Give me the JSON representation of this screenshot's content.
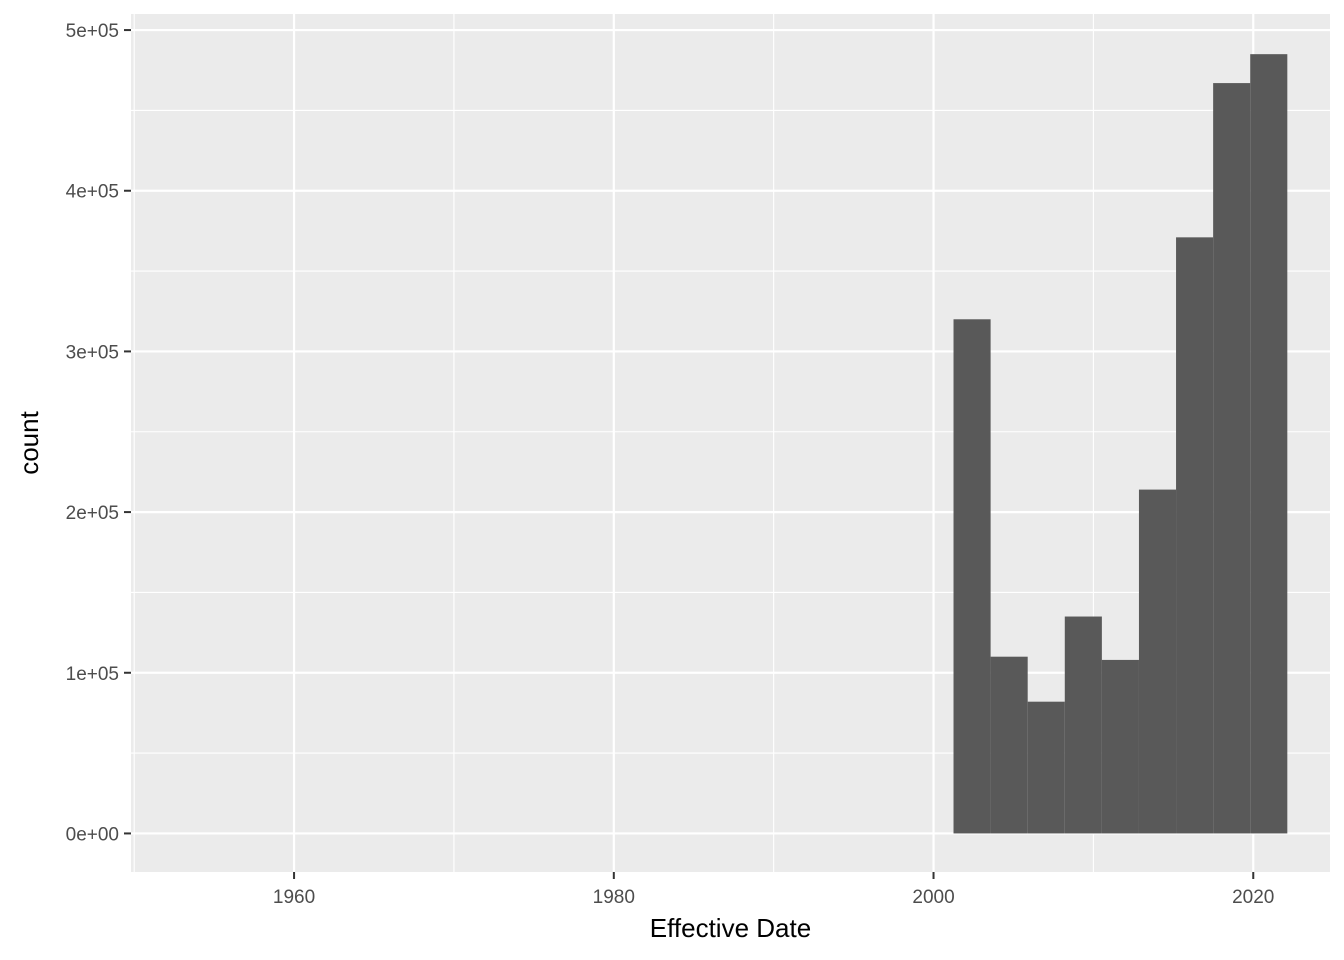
{
  "chart_data": {
    "type": "bar",
    "xlabel": "Effective Date",
    "ylabel": "count",
    "xlim": [
      1949.8,
      2024.8
    ],
    "ylim": [
      -24000,
      510000
    ],
    "x_ticks": [
      1960,
      1980,
      2000,
      2020
    ],
    "x_tick_labels": [
      "1960",
      "1980",
      "2000",
      "2020"
    ],
    "y_ticks": [
      0,
      100000,
      200000,
      300000,
      400000,
      500000
    ],
    "y_tick_labels": [
      "0e+00",
      "1e+05",
      "2e+05",
      "3e+05",
      "4e+05",
      "5e+05"
    ],
    "bin_width": 2.32,
    "bins": [
      {
        "start": 2001.25,
        "end": 2003.57,
        "count": 320000
      },
      {
        "start": 2003.57,
        "end": 2005.89,
        "count": 110000
      },
      {
        "start": 2005.89,
        "end": 2008.21,
        "count": 82000
      },
      {
        "start": 2008.21,
        "end": 2010.53,
        "count": 135000
      },
      {
        "start": 2010.53,
        "end": 2012.85,
        "count": 108000
      },
      {
        "start": 2012.85,
        "end": 2015.17,
        "count": 214000
      },
      {
        "start": 2015.17,
        "end": 2017.49,
        "count": 371000
      },
      {
        "start": 2017.49,
        "end": 2019.81,
        "count": 467000
      },
      {
        "start": 2019.81,
        "end": 2022.13,
        "count": 485000
      }
    ],
    "colors": {
      "panel_background": "#ebebeb",
      "grid": "#ffffff",
      "bar_fill": "#595959",
      "tick_text": "#4d4d4d",
      "axis_title": "#000000"
    },
    "grid": true,
    "legend": "none"
  }
}
